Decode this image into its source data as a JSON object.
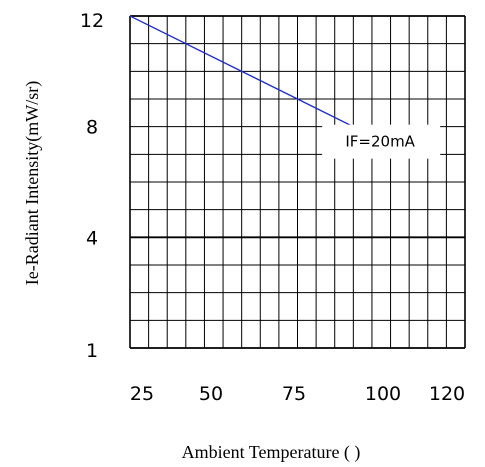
{
  "chart_data": {
    "type": "line",
    "title": "",
    "xlabel": "Ambient Temperature (   )",
    "ylabel": "Ie-Radiant Intensity(mW/sr)",
    "x_ticks": [
      "25",
      "50",
      "75",
      "100",
      "120"
    ],
    "y_ticks": [
      "12",
      "8",
      "4",
      "1"
    ],
    "grid": true,
    "series": [
      {
        "name": "IF=20mA",
        "color": "#1f2fd0",
        "x": [
          25,
          100
        ],
        "y": [
          12,
          7
        ]
      }
    ],
    "annotations": [
      {
        "text": "IF=20mA",
        "x": 100,
        "y": 8
      }
    ]
  }
}
